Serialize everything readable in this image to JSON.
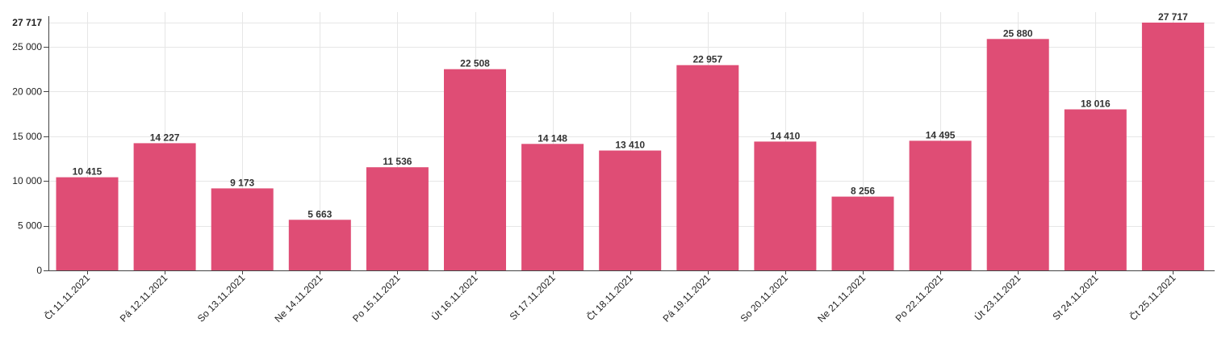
{
  "colors": {
    "bar": "#df4d75",
    "grid": "#e6e6e6",
    "axis": "#444444"
  },
  "chart_data": {
    "type": "bar",
    "title": "",
    "xlabel": "",
    "ylabel": "",
    "categories": [
      "Čt 11.11.2021",
      "Pá 12.11.2021",
      "So 13.11.2021",
      "Ne 14.11.2021",
      "Po 15.11.2021",
      "Út 16.11.2021",
      "St 17.11.2021",
      "Čt 18.11.2021",
      "Pá 19.11.2021",
      "So 20.11.2021",
      "Ne 21.11.2021",
      "Po 22.11.2021",
      "Út 23.11.2021",
      "St 24.11.2021",
      "Čt 25.11.2021"
    ],
    "values": [
      10415,
      14227,
      9173,
      5663,
      11536,
      22508,
      14148,
      13410,
      22957,
      14410,
      8256,
      14495,
      25880,
      18016,
      27717
    ],
    "value_labels": [
      "10 415",
      "14 227",
      "9 173",
      "5 663",
      "11 536",
      "22 508",
      "14 148",
      "13 410",
      "22 957",
      "14 410",
      "8 256",
      "14 495",
      "25 880",
      "18 016",
      "27 717"
    ],
    "ylim": [
      0,
      27717
    ],
    "yticks": [
      0,
      5000,
      10000,
      15000,
      20000,
      25000
    ],
    "ytick_labels": [
      "0",
      "5 000",
      "10 000",
      "15 000",
      "20 000",
      "25 000"
    ],
    "ymax_label": "27 717",
    "grid": true,
    "legend": "none"
  }
}
